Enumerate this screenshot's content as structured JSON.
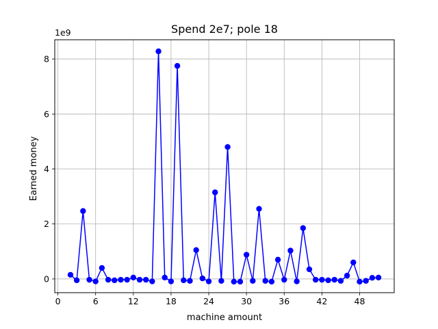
{
  "chart_data": {
    "type": "line",
    "title": "Spend 2e7; pole 18",
    "xlabel": "machine amount",
    "ylabel": "Earned money",
    "y_offset_label": "1e9",
    "xlim": [
      -0.5,
      53.5
    ],
    "ylim": [
      -500000000.0,
      8700000000.0
    ],
    "x_ticks": [
      0,
      6,
      12,
      18,
      24,
      30,
      36,
      42,
      48
    ],
    "y_ticks": [
      0,
      2000000000.0,
      4000000000.0,
      6000000000.0,
      8000000000.0
    ],
    "y_tick_labels": [
      "0",
      "2",
      "4",
      "6",
      "8"
    ],
    "grid": true,
    "color": "#0000ff",
    "marker": "circle",
    "series": [
      {
        "x": [
          2,
          3,
          4,
          5,
          6,
          7,
          8,
          9,
          10,
          11,
          12,
          13,
          14,
          15,
          16,
          17,
          18,
          19,
          20,
          21,
          22,
          23,
          24,
          25,
          26,
          27,
          28,
          29,
          30,
          31,
          32,
          33,
          34,
          35,
          36,
          37,
          38,
          39,
          40,
          41,
          42,
          43,
          44,
          45,
          46,
          47,
          48,
          49,
          50,
          51
        ],
        "values": [
          150000000.0,
          -50000000.0,
          2470000000.0,
          -30000000.0,
          -90000000.0,
          400000000.0,
          -30000000.0,
          -50000000.0,
          -30000000.0,
          -30000000.0,
          50000000.0,
          -30000000.0,
          -30000000.0,
          -90000000.0,
          8280000000.0,
          50000000.0,
          -90000000.0,
          7750000000.0,
          -50000000.0,
          -70000000.0,
          1050000000.0,
          20000000.0,
          -90000000.0,
          3150000000.0,
          -70000000.0,
          4800000000.0,
          -100000000.0,
          -100000000.0,
          880000000.0,
          -70000000.0,
          2550000000.0,
          -70000000.0,
          -100000000.0,
          700000000.0,
          -30000000.0,
          1030000000.0,
          -90000000.0,
          1850000000.0,
          350000000.0,
          -30000000.0,
          -30000000.0,
          -50000000.0,
          -30000000.0,
          -70000000.0,
          120000000.0,
          600000000.0,
          -100000000.0,
          -70000000.0,
          40000000.0,
          50000000.0
        ]
      }
    ]
  }
}
